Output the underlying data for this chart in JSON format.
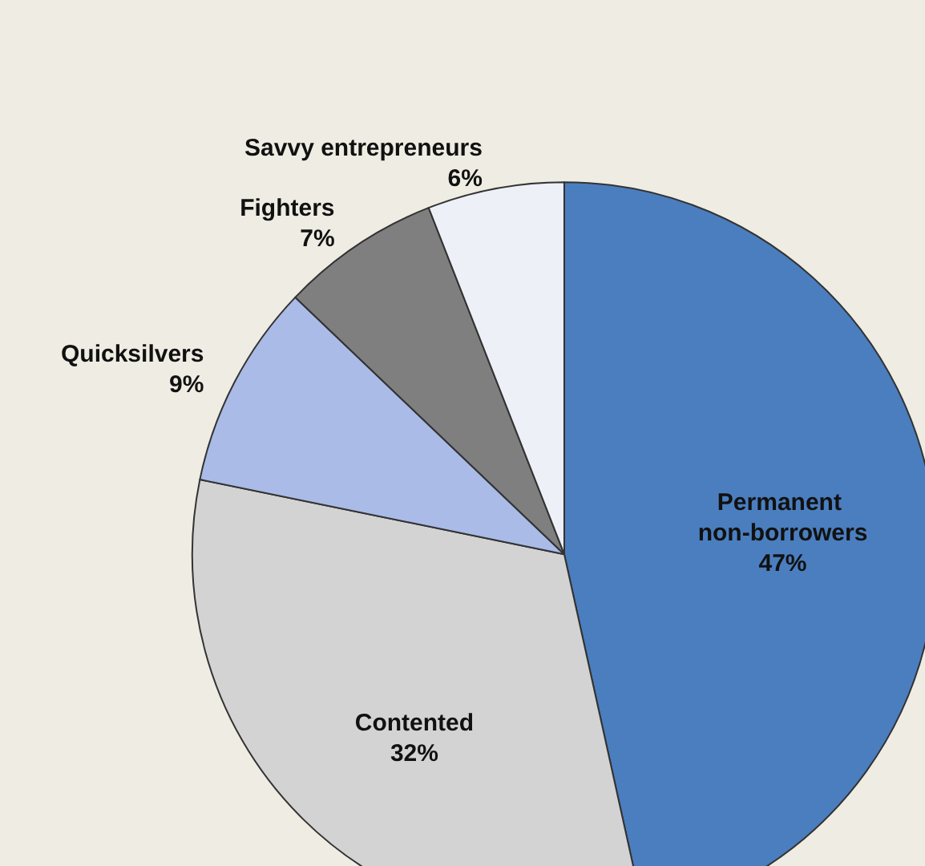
{
  "chart_data": {
    "type": "pie",
    "categories": [
      "Permanent non-borrowers",
      "Contented",
      "Quicksilvers",
      "Fighters",
      "Savvy entrepreneurs"
    ],
    "values": [
      47,
      32,
      9,
      7,
      6
    ],
    "colors": [
      "#4a7ebf",
      "#d3d3d3",
      "#a9bbe6",
      "#7f7f7f",
      "#eef0f8"
    ],
    "value_labels": [
      "47%",
      "32%",
      "9%",
      "7%",
      "6%"
    ],
    "legend": false
  }
}
